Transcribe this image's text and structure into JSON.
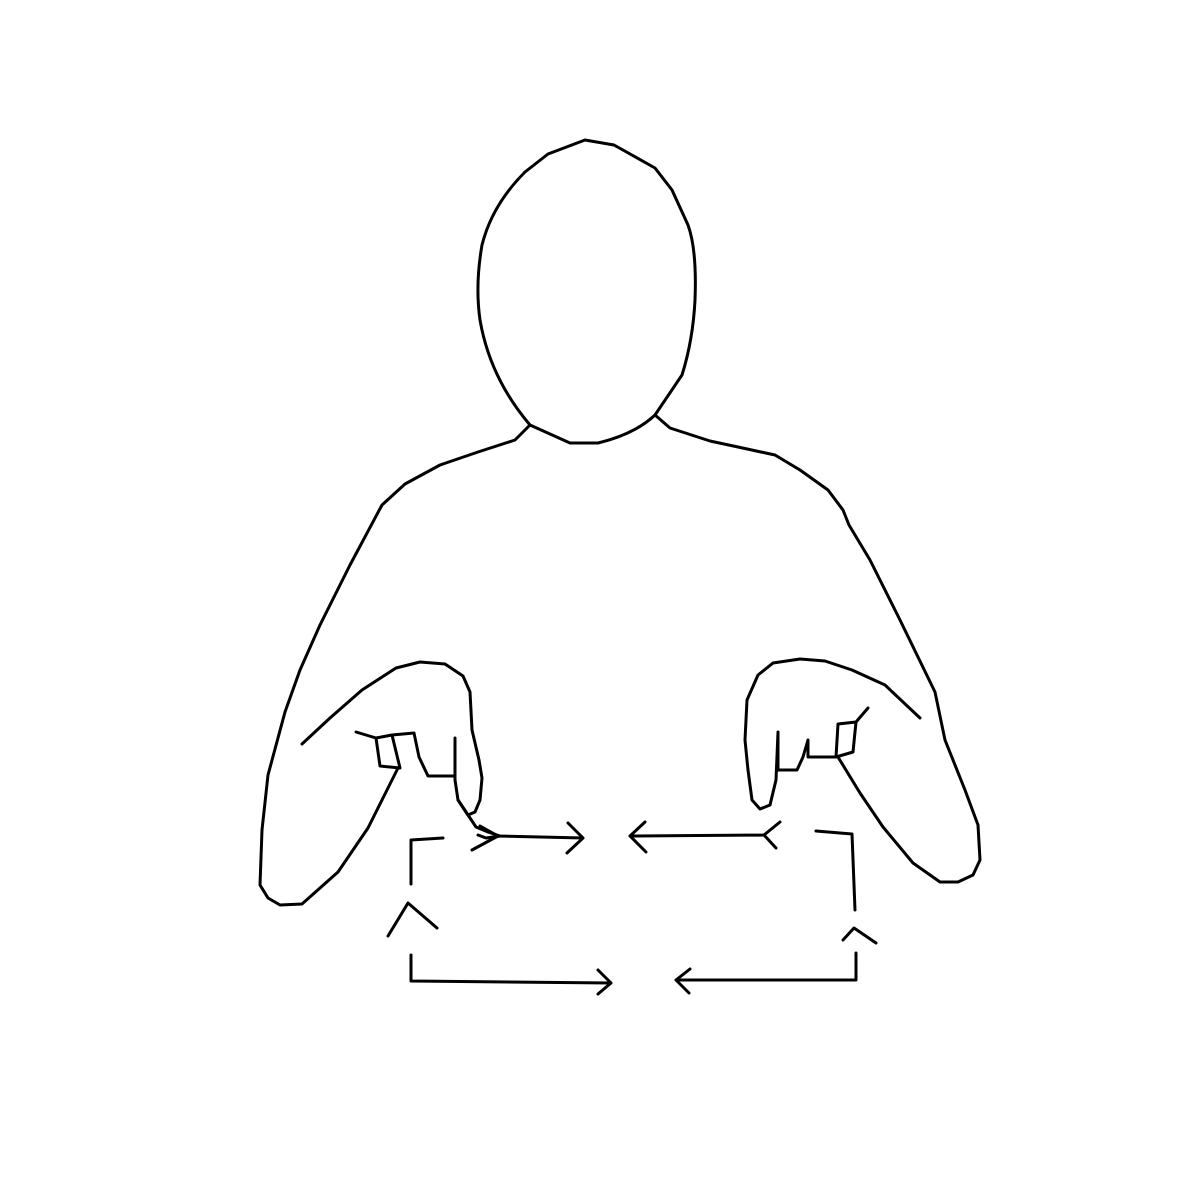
{
  "diagram": {
    "kind": "sign-language-illustration",
    "background_color": "#ffffff",
    "line_color": "#000000",
    "parts": [
      {
        "name": "head-outline"
      },
      {
        "name": "torso-outline"
      },
      {
        "name": "left-hand-outline"
      },
      {
        "name": "right-hand-outline"
      },
      {
        "name": "motion-arrow-top-left"
      },
      {
        "name": "motion-arrow-top-right"
      },
      {
        "name": "motion-arrow-left-side"
      },
      {
        "name": "motion-arrow-right-side"
      },
      {
        "name": "motion-arrow-bottom-left"
      },
      {
        "name": "motion-arrow-bottom-right"
      }
    ]
  }
}
